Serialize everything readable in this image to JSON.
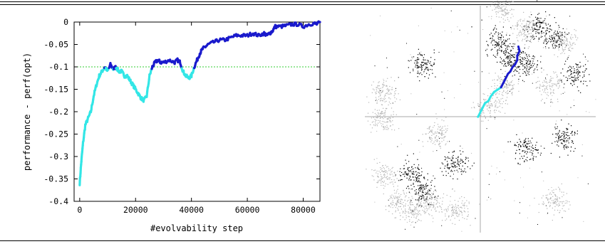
{
  "chart_data": [
    {
      "type": "line",
      "xlabel": "#evolvability step",
      "ylabel": "performance - perf(opt)",
      "xlim": [
        -2000,
        86000
      ],
      "ylim": [
        -0.4,
        0
      ],
      "xticks": [
        "0",
        "20000",
        "40000",
        "60000",
        "80000"
      ],
      "xtick_values": [
        0,
        20000,
        40000,
        60000,
        80000
      ],
      "yticks": [
        "0",
        "-0.05",
        "-0.1",
        "-0.15",
        "-0.2",
        "-0.25",
        "-0.3",
        "-0.35",
        "-0.4"
      ],
      "ytick_values": [
        0,
        -0.05,
        -0.1,
        -0.15,
        -0.2,
        -0.25,
        -0.3,
        -0.35,
        -0.4
      ],
      "grid": false,
      "reference_line": {
        "y": -0.1,
        "color": "#33cc33",
        "style": "dashed"
      },
      "colors": {
        "below_threshold": "#33e6e6",
        "above_threshold": "#1a1acc"
      },
      "series": [
        {
          "x": [
            0,
            600,
            1200,
            2000,
            3000,
            4000,
            5000,
            6000,
            7000,
            8000,
            9000,
            10000,
            11000,
            12000,
            13000,
            14000,
            15000,
            16000,
            17000,
            18000,
            19000,
            20000,
            21000,
            22000,
            23000,
            24000,
            25000,
            26000,
            27000,
            28000,
            29000,
            30000,
            32000,
            34000,
            35000,
            36000,
            37000,
            38000,
            39000,
            40000,
            41000,
            42000,
            43000,
            44000,
            45000,
            46000,
            48000,
            50000,
            52000,
            54000,
            56000,
            58000,
            60000,
            62000,
            64000,
            66000,
            67000,
            68000,
            69000,
            70000,
            72000,
            74000,
            76000,
            78000,
            80000,
            82000,
            84000,
            85000,
            86000
          ],
          "y": [
            -0.36,
            -0.31,
            -0.27,
            -0.23,
            -0.215,
            -0.2,
            -0.165,
            -0.14,
            -0.12,
            -0.11,
            -0.1,
            -0.11,
            -0.095,
            -0.105,
            -0.1,
            -0.11,
            -0.11,
            -0.12,
            -0.12,
            -0.13,
            -0.14,
            -0.15,
            -0.16,
            -0.17,
            -0.175,
            -0.165,
            -0.12,
            -0.1,
            -0.09,
            -0.085,
            -0.09,
            -0.09,
            -0.085,
            -0.09,
            -0.085,
            -0.09,
            -0.11,
            -0.12,
            -0.125,
            -0.12,
            -0.1,
            -0.085,
            -0.07,
            -0.06,
            -0.055,
            -0.05,
            -0.045,
            -0.04,
            -0.04,
            -0.035,
            -0.03,
            -0.03,
            -0.03,
            -0.025,
            -0.03,
            -0.025,
            -0.03,
            -0.025,
            -0.02,
            -0.01,
            -0.01,
            -0.008,
            -0.005,
            -0.005,
            -0.01,
            -0.005,
            -0.003,
            -0.005,
            0
          ]
        }
      ]
    },
    {
      "type": "scatter",
      "axes": "cross",
      "colors": {
        "cluster_black": "#000000",
        "cluster_gray": "#b4b4b4",
        "path_blue": "#1a1acc",
        "path_cyan": "#33e6e6"
      },
      "series": [
        {
          "cluster": "black",
          "centers": [
            [
              0.25,
              0.74
            ],
            [
              0.58,
              0.84
            ],
            [
              0.75,
              0.91
            ],
            [
              0.82,
              0.86
            ],
            [
              0.63,
              0.77
            ],
            [
              0.69,
              0.74
            ],
            [
              0.91,
              0.7
            ],
            [
              0.86,
              0.42
            ],
            [
              0.7,
              0.37
            ],
            [
              0.2,
              0.26
            ],
            [
              0.39,
              0.3
            ],
            [
              0.25,
              0.18
            ]
          ]
        },
        {
          "cluster": "gray",
          "centers": [
            [
              0.6,
              0.99
            ],
            [
              0.7,
              0.89
            ],
            [
              0.08,
              0.62
            ],
            [
              0.8,
              0.65
            ],
            [
              0.86,
              0.84
            ],
            [
              0.6,
              0.65
            ],
            [
              0.08,
              0.25
            ],
            [
              0.14,
              0.14
            ],
            [
              0.21,
              0.1
            ],
            [
              0.28,
              0.14
            ],
            [
              0.07,
              0.5
            ],
            [
              0.31,
              0.44
            ],
            [
              0.54,
              0.56
            ],
            [
              0.82,
              0.14
            ],
            [
              0.4,
              0.1
            ]
          ]
        }
      ],
      "path": [
        [
          0.49,
          0.51
        ],
        [
          0.5,
          0.53
        ],
        [
          0.51,
          0.55
        ],
        [
          0.52,
          0.57
        ],
        [
          0.535,
          0.58
        ],
        [
          0.545,
          0.6
        ],
        [
          0.56,
          0.62
        ],
        [
          0.575,
          0.63
        ],
        [
          0.59,
          0.64
        ],
        [
          0.6,
          0.66
        ],
        [
          0.61,
          0.68
        ],
        [
          0.62,
          0.7
        ],
        [
          0.63,
          0.71
        ],
        [
          0.64,
          0.73
        ],
        [
          0.65,
          0.74
        ],
        [
          0.66,
          0.76
        ],
        [
          0.66,
          0.78
        ],
        [
          0.67,
          0.8
        ],
        [
          0.665,
          0.82
        ]
      ],
      "path_switch_index": 8
    }
  ]
}
